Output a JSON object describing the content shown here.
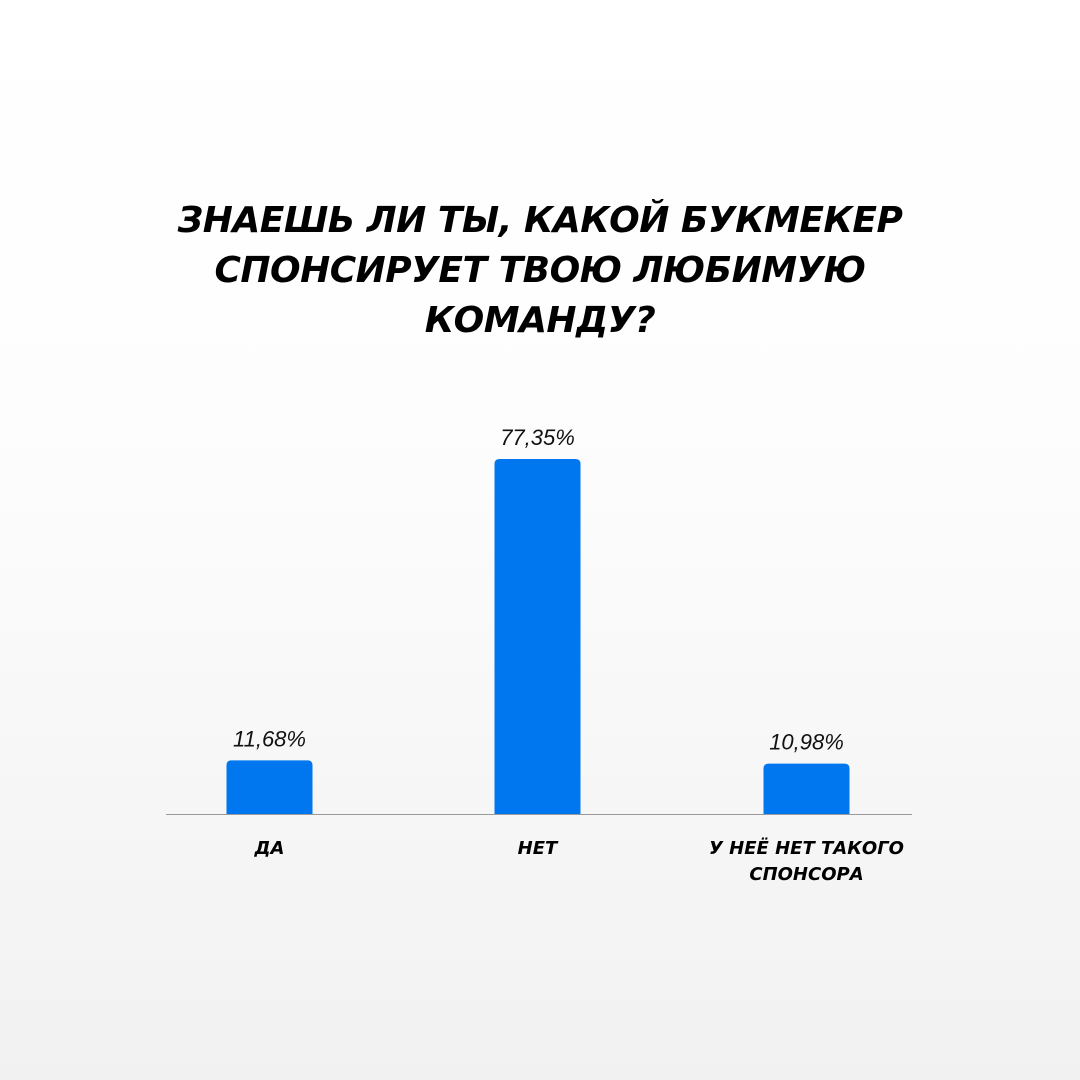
{
  "chart_data": {
    "type": "bar",
    "title_lines": [
      "ЗНАЕШЬ ЛИ ТЫ, КАКОЙ БУКМЕКЕР",
      "СПОНСИРУЕТ ТВОЮ ЛЮБИМУЮ",
      "КОМАНДУ?"
    ],
    "categories": [
      [
        "ДА"
      ],
      [
        "НЕТ"
      ],
      [
        "У НЕЁ НЕТ ТАКОГО",
        "СПОНСОРА"
      ]
    ],
    "values": [
      11.68,
      77.35,
      10.98
    ],
    "value_labels": [
      "11,68%",
      "77,35%",
      "10,98%"
    ],
    "xlabel": "",
    "ylabel": "",
    "grid": false,
    "colors": {
      "bar": "#0077ee",
      "axis": "#9a9a9a"
    }
  }
}
